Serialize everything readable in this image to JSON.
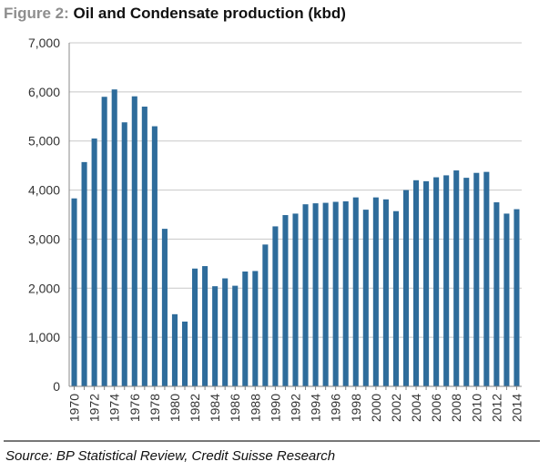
{
  "title": {
    "prefix": "Figure 2:",
    "main": "Oil and Condensate production (kbd)"
  },
  "source": "Source: BP Statistical Review, Credit Suisse Research",
  "chart_data": {
    "type": "bar",
    "title": "Oil and Condensate production (kbd)",
    "xlabel": "",
    "ylabel": "",
    "ylim": [
      0,
      7000
    ],
    "yticks": [
      0,
      1000,
      2000,
      3000,
      4000,
      5000,
      6000,
      7000
    ],
    "ytick_labels": [
      "0",
      "1,000",
      "2,000",
      "3,000",
      "4,000",
      "5,000",
      "6,000",
      "7,000"
    ],
    "grid": true,
    "bar_color": "#2e6c9b",
    "categories": [
      "1970",
      "1971",
      "1972",
      "1973",
      "1974",
      "1975",
      "1976",
      "1977",
      "1978",
      "1979",
      "1980",
      "1981",
      "1982",
      "1983",
      "1984",
      "1985",
      "1986",
      "1987",
      "1988",
      "1989",
      "1990",
      "1991",
      "1992",
      "1993",
      "1994",
      "1995",
      "1996",
      "1997",
      "1998",
      "1999",
      "2000",
      "2001",
      "2002",
      "2003",
      "2004",
      "2005",
      "2006",
      "2007",
      "2008",
      "2009",
      "2010",
      "2011",
      "2012",
      "2013",
      "2014"
    ],
    "xtick_labels": [
      "1970",
      "1972",
      "1974",
      "1976",
      "1978",
      "1980",
      "1982",
      "1984",
      "1986",
      "1988",
      "1990",
      "1992",
      "1994",
      "1996",
      "1998",
      "2000",
      "2002",
      "2004",
      "2006",
      "2008",
      "2010",
      "2012",
      "2014"
    ],
    "values": [
      3830,
      4570,
      5050,
      5900,
      6050,
      5380,
      5910,
      5700,
      5300,
      3210,
      1470,
      1320,
      2400,
      2450,
      2040,
      2200,
      2050,
      2340,
      2350,
      2890,
      3260,
      3490,
      3520,
      3710,
      3730,
      3740,
      3760,
      3770,
      3850,
      3600,
      3850,
      3810,
      3570,
      4000,
      4200,
      4180,
      4260,
      4300,
      4400,
      4250,
      4350,
      4370,
      3750,
      3520,
      3610
    ]
  }
}
